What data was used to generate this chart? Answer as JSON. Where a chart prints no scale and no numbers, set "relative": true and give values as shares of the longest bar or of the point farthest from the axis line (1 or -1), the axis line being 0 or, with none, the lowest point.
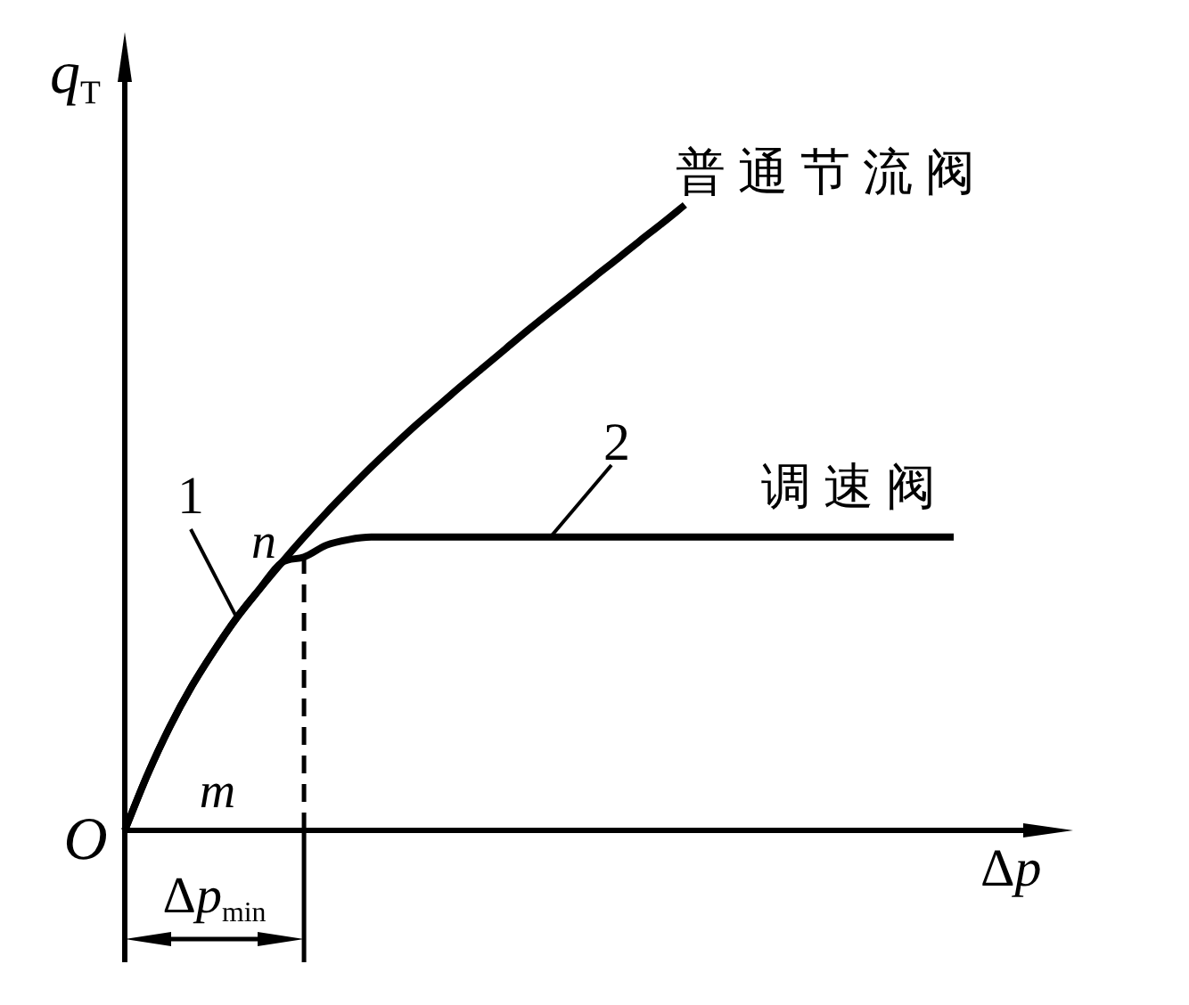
{
  "chart_data": {
    "type": "line",
    "relative": true,
    "xlabel": "Δp",
    "ylabel": "q$_{T}$",
    "line_style": "solid",
    "categories": [
      null,
      null,
      null,
      null,
      null,
      null,
      null,
      null,
      null,
      null,
      null,
      null,
      null,
      null,
      null,
      null,
      null,
      null,
      null,
      null,
      null,
      null,
      null,
      null,
      null,
      null,
      null,
      null,
      null,
      null,
      null,
      null,
      null,
      null,
      null,
      null,
      null,
      null
    ],
    "series": [
      {
        "name": "普通节流阀",
        "color": "#000000",
        "values": [
          0,
          0.088,
          0.165,
          0.231,
          0.288,
          0.34,
          0.385,
          0.428,
          0.469,
          0.508,
          0.545,
          0.581,
          0.615,
          0.648,
          0.679,
          0.71,
          0.74,
          0.77,
          0.8,
          0.829,
          0.857,
          0.886,
          0.914,
          0.943,
          0.971,
          1,
          null,
          null,
          null,
          null,
          null,
          null,
          null,
          null,
          null,
          null,
          null,
          null
        ]
      },
      {
        "name": "调速阀",
        "color": "#000000",
        "values": [
          0,
          0.088,
          0.165,
          0.231,
          0.288,
          0.34,
          0.385,
          0.428,
          0.437,
          0.456,
          0.465,
          0.469,
          0.469,
          0.469,
          0.469,
          0.469,
          0.469,
          0.469,
          0.469,
          0.469,
          0.469,
          0.469,
          0.469,
          0.469,
          0.469,
          0.469,
          0.469,
          0.469,
          0.469,
          0.469,
          0.469,
          0.469,
          0.469,
          0.469,
          0.469,
          0.469,
          0.469,
          0.469
        ]
      }
    ],
    "annotations": [
      "1",
      "2",
      "n",
      "m",
      "O",
      "Δp$_{min}$"
    ]
  }
}
